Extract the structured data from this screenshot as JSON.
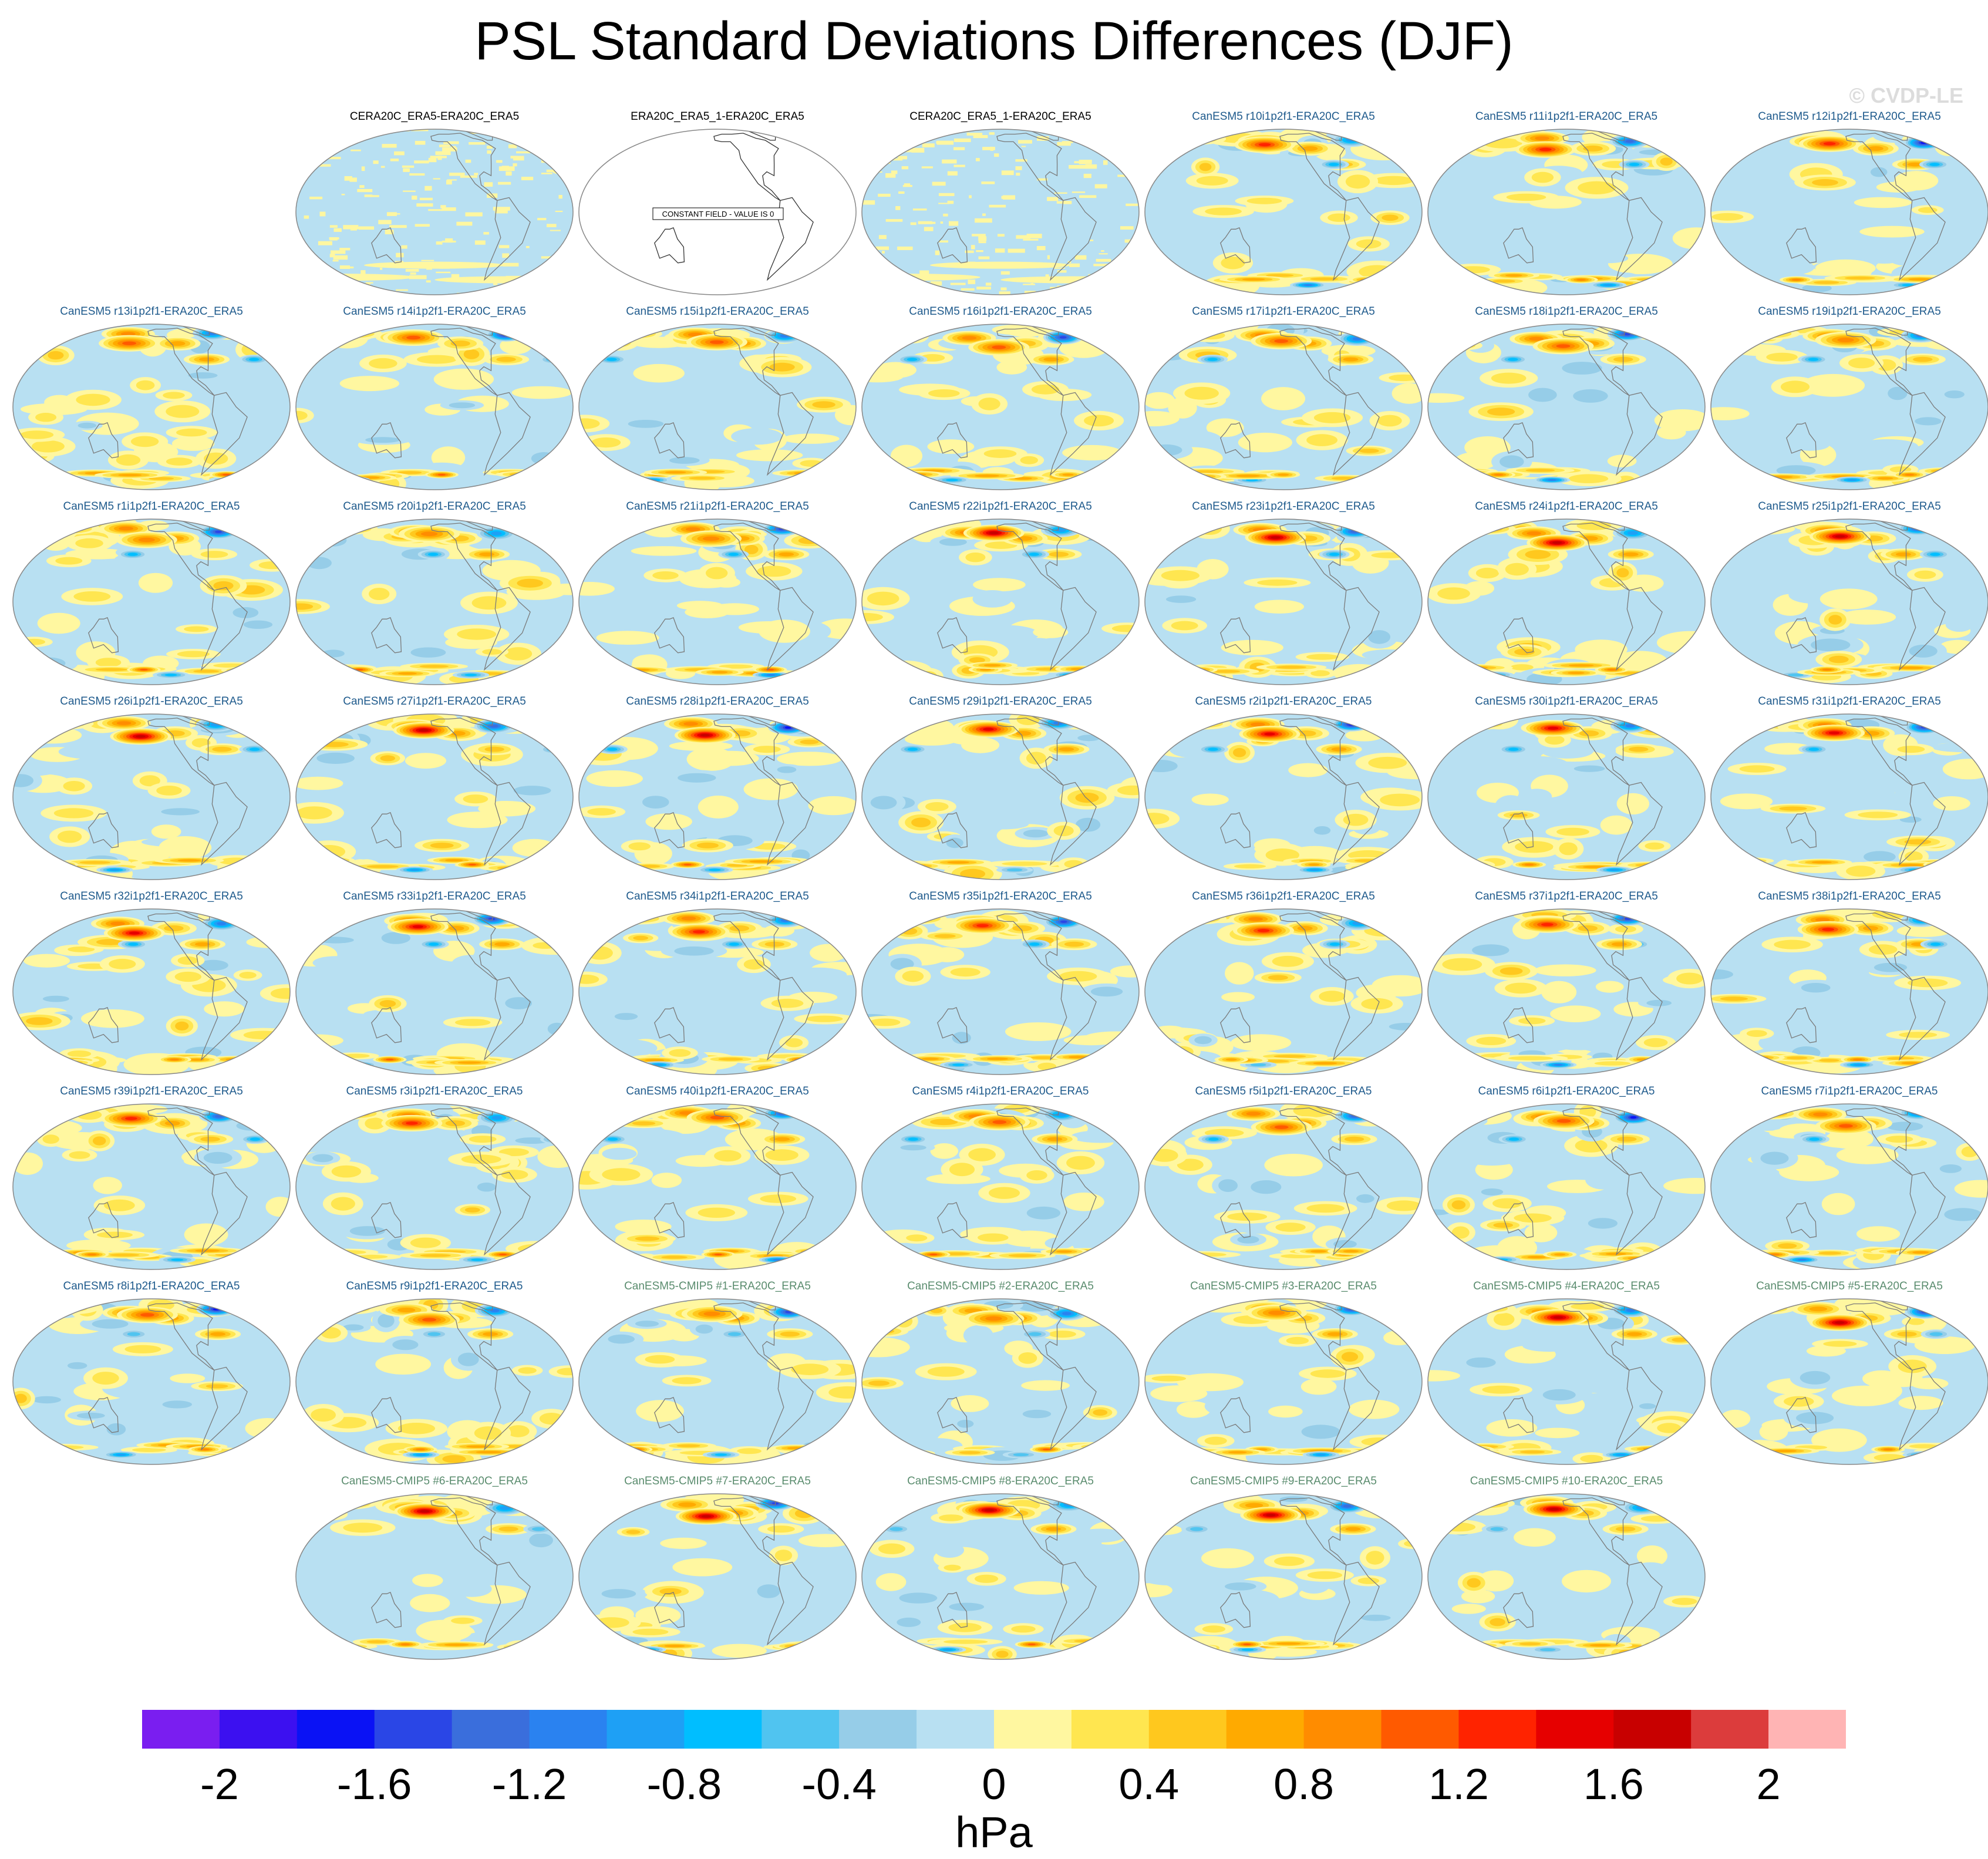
{
  "title": "PSL Standard Deviations Differences (DJF)",
  "watermark": "© CVDP-LE",
  "colorbar": {
    "units": "hPa",
    "colors": [
      "#7a1ef0",
      "#3c10f0",
      "#0a12f5",
      "#2a46e6",
      "#3a6edc",
      "#2a82f0",
      "#1ea0f5",
      "#00beff",
      "#50c4f0",
      "#96cde8",
      "#b8e0f2",
      "#fff7a0",
      "#ffe650",
      "#ffc81e",
      "#ffaa00",
      "#ff8c00",
      "#ff5a00",
      "#ff2300",
      "#e60000",
      "#c80000",
      "#dc3c3c",
      "#ffb4b4"
    ],
    "tick_labels": [
      "-2",
      "-1.6",
      "-1.2",
      "-0.8",
      "-0.4",
      "0",
      "0.4",
      "0.8",
      "1.2",
      "1.6",
      "2"
    ],
    "range": [
      -2.2,
      2.2
    ]
  },
  "panels": [
    {
      "title": "CERA20C_ERA5-ERA20C_ERA5",
      "kind": "obs"
    },
    {
      "title": "ERA20C_ERA5_1-ERA20C_ERA5",
      "kind": "const",
      "note": "CONSTANT FIELD - VALUE IS 0"
    },
    {
      "title": "CERA20C_ERA5_1-ERA20C_ERA5",
      "kind": "obs"
    },
    {
      "title": "CanESM5 r10i1p2f1-ERA20C_ERA5",
      "kind": "model"
    },
    {
      "title": "CanESM5 r11i1p2f1-ERA20C_ERA5",
      "kind": "model"
    },
    {
      "title": "CanESM5 r12i1p2f1-ERA20C_ERA5",
      "kind": "model"
    },
    {
      "title": "CanESM5 r13i1p2f1-ERA20C_ERA5",
      "kind": "model"
    },
    {
      "title": "CanESM5 r14i1p2f1-ERA20C_ERA5",
      "kind": "model"
    },
    {
      "title": "CanESM5 r15i1p2f1-ERA20C_ERA5",
      "kind": "model"
    },
    {
      "title": "CanESM5 r16i1p2f1-ERA20C_ERA5",
      "kind": "model"
    },
    {
      "title": "CanESM5 r17i1p2f1-ERA20C_ERA5",
      "kind": "model"
    },
    {
      "title": "CanESM5 r18i1p2f1-ERA20C_ERA5",
      "kind": "model"
    },
    {
      "title": "CanESM5 r19i1p2f1-ERA20C_ERA5",
      "kind": "model"
    },
    {
      "title": "CanESM5 r1i1p2f1-ERA20C_ERA5",
      "kind": "model"
    },
    {
      "title": "CanESM5 r20i1p2f1-ERA20C_ERA5",
      "kind": "model"
    },
    {
      "title": "CanESM5 r21i1p2f1-ERA20C_ERA5",
      "kind": "model"
    },
    {
      "title": "CanESM5 r22i1p2f1-ERA20C_ERA5",
      "kind": "model"
    },
    {
      "title": "CanESM5 r23i1p2f1-ERA20C_ERA5",
      "kind": "model"
    },
    {
      "title": "CanESM5 r24i1p2f1-ERA20C_ERA5",
      "kind": "model"
    },
    {
      "title": "CanESM5 r25i1p2f1-ERA20C_ERA5",
      "kind": "model"
    },
    {
      "title": "CanESM5 r26i1p2f1-ERA20C_ERA5",
      "kind": "model"
    },
    {
      "title": "CanESM5 r27i1p2f1-ERA20C_ERA5",
      "kind": "model"
    },
    {
      "title": "CanESM5 r28i1p2f1-ERA20C_ERA5",
      "kind": "model"
    },
    {
      "title": "CanESM5 r29i1p2f1-ERA20C_ERA5",
      "kind": "model"
    },
    {
      "title": "CanESM5 r2i1p2f1-ERA20C_ERA5",
      "kind": "model"
    },
    {
      "title": "CanESM5 r30i1p2f1-ERA20C_ERA5",
      "kind": "model"
    },
    {
      "title": "CanESM5 r31i1p2f1-ERA20C_ERA5",
      "kind": "model"
    },
    {
      "title": "CanESM5 r32i1p2f1-ERA20C_ERA5",
      "kind": "model"
    },
    {
      "title": "CanESM5 r33i1p2f1-ERA20C_ERA5",
      "kind": "model"
    },
    {
      "title": "CanESM5 r34i1p2f1-ERA20C_ERA5",
      "kind": "model"
    },
    {
      "title": "CanESM5 r35i1p2f1-ERA20C_ERA5",
      "kind": "model"
    },
    {
      "title": "CanESM5 r36i1p2f1-ERA20C_ERA5",
      "kind": "model"
    },
    {
      "title": "CanESM5 r37i1p2f1-ERA20C_ERA5",
      "kind": "model"
    },
    {
      "title": "CanESM5 r38i1p2f1-ERA20C_ERA5",
      "kind": "model"
    },
    {
      "title": "CanESM5 r39i1p2f1-ERA20C_ERA5",
      "kind": "model"
    },
    {
      "title": "CanESM5 r3i1p2f1-ERA20C_ERA5",
      "kind": "model"
    },
    {
      "title": "CanESM5 r40i1p2f1-ERA20C_ERA5",
      "kind": "model"
    },
    {
      "title": "CanESM5 r4i1p2f1-ERA20C_ERA5",
      "kind": "model"
    },
    {
      "title": "CanESM5 r5i1p2f1-ERA20C_ERA5",
      "kind": "model"
    },
    {
      "title": "CanESM5 r6i1p2f1-ERA20C_ERA5",
      "kind": "model"
    },
    {
      "title": "CanESM5 r7i1p2f1-ERA20C_ERA5",
      "kind": "model"
    },
    {
      "title": "CanESM5 r8i1p2f1-ERA20C_ERA5",
      "kind": "model"
    },
    {
      "title": "CanESM5 r9i1p2f1-ERA20C_ERA5",
      "kind": "model"
    },
    {
      "title": "CanESM5-CMIP5 #1-ERA20C_ERA5",
      "kind": "cmip5"
    },
    {
      "title": "CanESM5-CMIP5 #2-ERA20C_ERA5",
      "kind": "cmip5"
    },
    {
      "title": "CanESM5-CMIP5 #3-ERA20C_ERA5",
      "kind": "cmip5"
    },
    {
      "title": "CanESM5-CMIP5 #4-ERA20C_ERA5",
      "kind": "cmip5"
    },
    {
      "title": "CanESM5-CMIP5 #5-ERA20C_ERA5",
      "kind": "cmip5"
    },
    {
      "title": "CanESM5-CMIP5 #6-ERA20C_ERA5",
      "kind": "cmip5"
    },
    {
      "title": "CanESM5-CMIP5 #7-ERA20C_ERA5",
      "kind": "cmip5"
    },
    {
      "title": "CanESM5-CMIP5 #8-ERA20C_ERA5",
      "kind": "cmip5"
    },
    {
      "title": "CanESM5-CMIP5 #9-ERA20C_ERA5",
      "kind": "cmip5"
    },
    {
      "title": "CanESM5-CMIP5 #10-ERA20C_ERA5",
      "kind": "cmip5"
    }
  ],
  "title_colors": {
    "obs": "#000000",
    "const": "#000000",
    "model": "#1e5a8c",
    "cmip5": "#5a8c6e"
  }
}
